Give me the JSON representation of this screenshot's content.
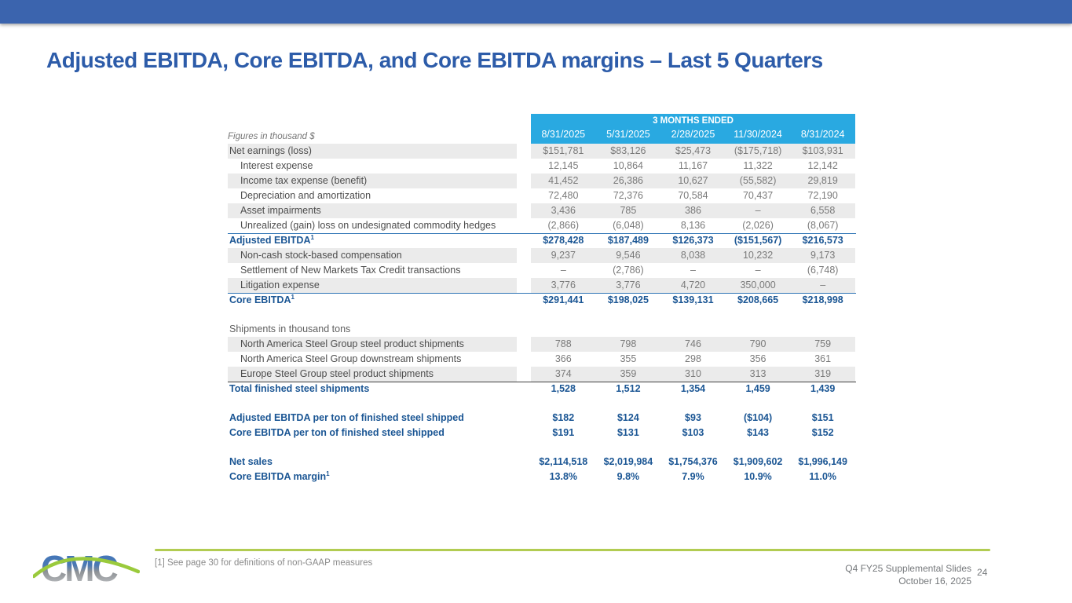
{
  "slide": {
    "title": "Adjusted EBITDA, Core EBITDA, and Core EBITDA margins – Last 5 Quarters",
    "footnote": "[1] See page 30 for definitions of non-GAAP measures",
    "footer_line1": "Q4 FY25 Supplemental Slides",
    "footer_line2": "October 16, 2025",
    "page_number": "24",
    "logo_text": "CMC"
  },
  "colors": {
    "top_bar": "#3B64AE",
    "title": "#2D5CA9",
    "header_band": "#29A9E1",
    "zebra": "#EBEBEB",
    "blue_text": "#1B5694",
    "border_blue": "#2E74B5",
    "border_dark": "#3F3F3F",
    "green_line": "#B2CC52",
    "logo_green": "#9ACA3C",
    "logo_blue": "#3F74BC",
    "logo_gray": "#C8CACC"
  },
  "table": {
    "units_label": "Figures in thousand $",
    "header_band_label": "3 MONTHS ENDED",
    "columns": [
      "8/31/2025",
      "5/31/2025",
      "2/28/2025",
      "11/30/2024",
      "8/31/2024"
    ],
    "rows": [
      {
        "label": "Net earnings (loss)",
        "shade": true,
        "values": [
          "$151,781",
          "$83,126",
          "$25,473",
          "($175,718)",
          "$103,931"
        ]
      },
      {
        "label": "Interest expense",
        "indent": true,
        "values": [
          "12,145",
          "10,864",
          "11,167",
          "11,322",
          "12,142"
        ]
      },
      {
        "label": "Income tax expense (benefit)",
        "indent": true,
        "shade": true,
        "values": [
          "41,452",
          "26,386",
          "10,627",
          "(55,582)",
          "29,819"
        ]
      },
      {
        "label": "Depreciation and amortization",
        "indent": true,
        "values": [
          "72,480",
          "72,376",
          "70,584",
          "70,437",
          "72,190"
        ]
      },
      {
        "label": "Asset impairments",
        "indent": true,
        "shade": true,
        "values": [
          "3,436",
          "785",
          "386",
          "–",
          "6,558"
        ]
      },
      {
        "label": "Unrealized (gain) loss on undesignated commodity hedges",
        "indent": true,
        "values": [
          "(2,866)",
          "(6,048)",
          "8,136",
          "(2,026)",
          "(8,067)"
        ]
      },
      {
        "label": "Adjusted EBITDA",
        "sup": "1",
        "emphasis": "blue",
        "border_top": "blue",
        "values": [
          "$278,428",
          "$187,489",
          "$126,373",
          "($151,567)",
          "$216,573"
        ]
      },
      {
        "label": "Non-cash stock-based compensation",
        "indent": true,
        "shade": true,
        "values": [
          "9,237",
          "9,546",
          "8,038",
          "10,232",
          "9,173"
        ]
      },
      {
        "label": "Settlement of New Markets Tax Credit transactions",
        "indent": true,
        "values": [
          "–",
          "(2,786)",
          "–",
          "–",
          "(6,748)"
        ]
      },
      {
        "label": "Litigation expense",
        "indent": true,
        "shade": true,
        "values": [
          "3,776",
          "3,776",
          "4,720",
          "350,000",
          "–"
        ]
      },
      {
        "label": "Core EBITDA",
        "sup": "1",
        "emphasis": "blue",
        "border_top": "blue",
        "values": [
          "$291,441",
          "$198,025",
          "$139,131",
          "$208,665",
          "$218,998"
        ]
      },
      {
        "type": "spacer"
      },
      {
        "label": "Shipments in thousand tons",
        "section": true,
        "values": null
      },
      {
        "label": "North America Steel Group steel product shipments",
        "indent": true,
        "shade": true,
        "values": [
          "788",
          "798",
          "746",
          "790",
          "759"
        ]
      },
      {
        "label": "North America Steel Group downstream shipments",
        "indent": true,
        "values": [
          "366",
          "355",
          "298",
          "356",
          "361"
        ]
      },
      {
        "label": "Europe Steel Group steel product shipments",
        "indent": true,
        "shade": true,
        "values": [
          "374",
          "359",
          "310",
          "313",
          "319"
        ]
      },
      {
        "label": "Total finished steel shipments",
        "emphasis": "blue",
        "border_top": "dark",
        "values": [
          "1,528",
          "1,512",
          "1,354",
          "1,459",
          "1,439"
        ]
      },
      {
        "type": "spacer"
      },
      {
        "label": "Adjusted EBITDA per ton of finished steel shipped",
        "emphasis": "blue",
        "values": [
          "$182",
          "$124",
          "$93",
          "($104)",
          "$151"
        ]
      },
      {
        "label": "Core EBITDA per ton of finished steel shipped",
        "emphasis": "blue",
        "values": [
          "$191",
          "$131",
          "$103",
          "$143",
          "$152"
        ]
      },
      {
        "type": "spacer"
      },
      {
        "label": "Net sales",
        "emphasis": "blue",
        "values": [
          "$2,114,518",
          "$2,019,984",
          "$1,754,376",
          "$1,909,602",
          "$1,996,149"
        ]
      },
      {
        "label": "Core EBITDA margin",
        "sup": "1",
        "emphasis": "blue",
        "values": [
          "13.8%",
          "9.8%",
          "7.9%",
          "10.9%",
          "11.0%"
        ]
      }
    ]
  }
}
